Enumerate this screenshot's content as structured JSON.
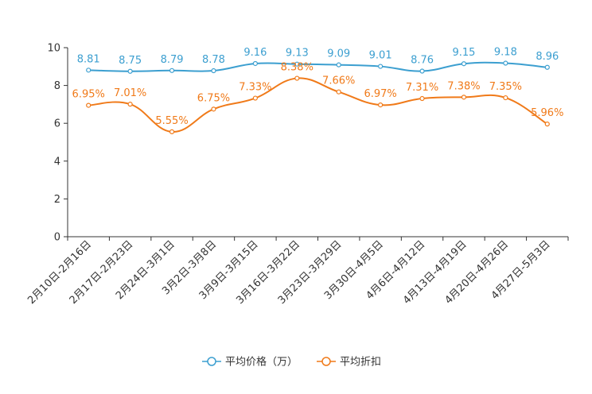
{
  "chart_data": {
    "type": "line",
    "title": "",
    "xlabel": "",
    "ylabel": "",
    "ylim": [
      0,
      10
    ],
    "yticks": [
      0,
      2,
      4,
      6,
      8,
      10
    ],
    "grid": false,
    "legend_position": "bottom-center",
    "categories": [
      "2月10日-2月16日",
      "2月17日-2月23日",
      "2月24日-3月1日",
      "3月2日-3月8日",
      "3月9日-3月15日",
      "3月16日-3月22日",
      "3月23日-3月29日",
      "3月30日-4月5日",
      "4月6日-4月12日",
      "4月13日-4月19日",
      "4月20日-4月26日",
      "4月27日-5月3日"
    ],
    "series": [
      {
        "name": "平均价格（万）",
        "color": "#3c9fd0",
        "values": [
          8.81,
          8.75,
          8.79,
          8.78,
          9.16,
          9.13,
          9.09,
          9.01,
          8.76,
          9.15,
          9.18,
          8.96
        ],
        "labels": [
          "8.81",
          "8.75",
          "8.79",
          "8.78",
          "9.16",
          "9.13",
          "9.09",
          "9.01",
          "8.76",
          "9.15",
          "9.18",
          "8.96"
        ]
      },
      {
        "name": "平均折扣",
        "color": "#f07a19",
        "values": [
          6.95,
          7.01,
          5.55,
          6.75,
          7.33,
          8.38,
          7.66,
          6.97,
          7.31,
          7.38,
          7.35,
          5.96
        ],
        "labels": [
          "6.95%",
          "7.01%",
          "5.55%",
          "6.75%",
          "7.33%",
          "8.38%",
          "7.66%",
          "6.97%",
          "7.31%",
          "7.38%",
          "7.35%",
          "5.96%"
        ]
      }
    ]
  }
}
